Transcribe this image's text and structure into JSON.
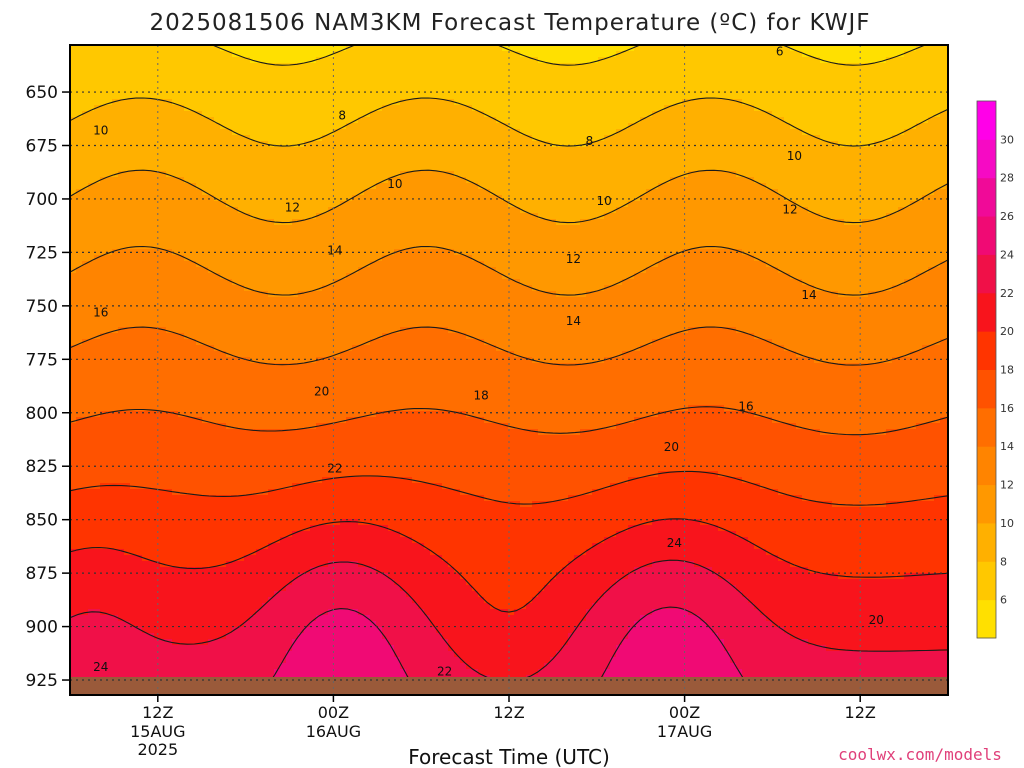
{
  "title": "2025081506 NAM3KM Forecast Temperature (ºC) for KWJF",
  "credit": "coolwx.com/models",
  "chart_data": {
    "type": "heatmap",
    "title": "2025081506 NAM3KM Forecast Temperature (ºC) for KWJF",
    "xlabel": "Forecast Time (UTC)",
    "ylabel": "",
    "y_axis": "pressure (hPa), reversed",
    "ylim": [
      932,
      628
    ],
    "y_ticks": [
      650,
      675,
      700,
      725,
      750,
      775,
      800,
      825,
      850,
      875,
      900,
      925
    ],
    "x_ticks": [
      {
        "hour": 6,
        "label": "12Z",
        "sub1": "15AUG",
        "sub2": "2025"
      },
      {
        "hour": 18,
        "label": "00Z",
        "sub1": "16AUG",
        "sub2": ""
      },
      {
        "hour": 30,
        "label": "12Z",
        "sub1": "",
        "sub2": ""
      },
      {
        "hour": 42,
        "label": "00Z",
        "sub1": "17AUG",
        "sub2": ""
      },
      {
        "hour": 54,
        "label": "12Z",
        "sub1": "",
        "sub2": ""
      }
    ],
    "xlim": [
      0,
      60
    ],
    "grid": true,
    "colorbar": {
      "ticks": [
        6,
        8,
        10,
        12,
        14,
        16,
        18,
        20,
        22,
        24,
        26,
        28,
        30
      ],
      "range": [
        4,
        32
      ],
      "colors": [
        "#ffe000",
        "#ffc800",
        "#ffb000",
        "#ff9800",
        "#ff8400",
        "#ff6e00",
        "#ff5200",
        "#ff3400",
        "#f8141c",
        "#f01048",
        "#f00a74",
        "#f00a98",
        "#f60ac4",
        "#ff00e8"
      ]
    },
    "contour_labels": [
      {
        "text": "6",
        "hour": 48.5,
        "pressure": 631
      },
      {
        "text": "8",
        "hour": 18.6,
        "pressure": 661
      },
      {
        "text": "8",
        "hour": 35.5,
        "pressure": 673
      },
      {
        "text": "10",
        "hour": 2.1,
        "pressure": 668
      },
      {
        "text": "10",
        "hour": 22.2,
        "pressure": 693
      },
      {
        "text": "10",
        "hour": 36.5,
        "pressure": 701
      },
      {
        "text": "10",
        "hour": 49.5,
        "pressure": 680
      },
      {
        "text": "12",
        "hour": 15.2,
        "pressure": 704
      },
      {
        "text": "12",
        "hour": 34.4,
        "pressure": 728
      },
      {
        "text": "12",
        "hour": 49.2,
        "pressure": 705
      },
      {
        "text": "14",
        "hour": 18.1,
        "pressure": 724
      },
      {
        "text": "14",
        "hour": 34.4,
        "pressure": 757
      },
      {
        "text": "14",
        "hour": 50.5,
        "pressure": 745
      },
      {
        "text": "16",
        "hour": 2.1,
        "pressure": 753
      },
      {
        "text": "16",
        "hour": 46.2,
        "pressure": 797
      },
      {
        "text": "18",
        "hour": 28.1,
        "pressure": 792
      },
      {
        "text": "20",
        "hour": 17.2,
        "pressure": 790
      },
      {
        "text": "20",
        "hour": 41.1,
        "pressure": 816
      },
      {
        "text": "20",
        "hour": 55.1,
        "pressure": 897
      },
      {
        "text": "22",
        "hour": 18.1,
        "pressure": 826
      },
      {
        "text": "22",
        "hour": 25.6,
        "pressure": 921
      },
      {
        "text": "24",
        "hour": 2.1,
        "pressure": 919
      },
      {
        "text": "24",
        "hour": 41.3,
        "pressure": 861
      }
    ]
  }
}
